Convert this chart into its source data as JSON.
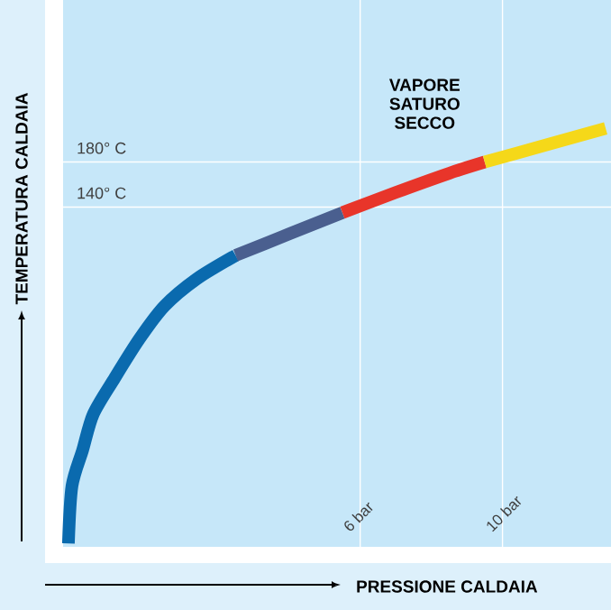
{
  "chart_data": {
    "type": "line",
    "xlabel": "PRESSIONE CALDAIA",
    "ylabel": "TEMPERATURA CALDAIA",
    "annotations": [
      "VAPORE SATURO SECCO"
    ],
    "xlim": [
      -2.35,
      13.05
    ],
    "ylim": [
      -162,
      324
    ],
    "xticks": [
      {
        "value": 6,
        "label": "6 bar"
      },
      {
        "value": 10,
        "label": "10 bar"
      }
    ],
    "yticks": [
      {
        "value": 140,
        "label": "140° C"
      },
      {
        "value": 180,
        "label": "180° C"
      }
    ],
    "grid": true,
    "series": [
      {
        "color": "#0a6aae",
        "x": [
          -2.2,
          -2.1,
          -1.8,
          -1.5,
          -0.9,
          -0.2,
          0.5,
          1.4,
          2.5
        ],
        "values": [
          -159,
          -108,
          -76,
          -44,
          -12,
          23,
          52,
          76,
          97
        ]
      },
      {
        "color": "#4a5f8f",
        "x": [
          2.5,
          4.0,
          5.5
        ],
        "values": [
          97,
          116,
          135
        ]
      },
      {
        "color": "#e8352a",
        "x": [
          5.5,
          7.0,
          8.5,
          9.5
        ],
        "values": [
          135,
          153,
          170,
          180
        ]
      },
      {
        "color": "#f5d819",
        "x": [
          9.5,
          11.1,
          12.9
        ],
        "values": [
          180,
          194,
          210
        ]
      }
    ]
  }
}
